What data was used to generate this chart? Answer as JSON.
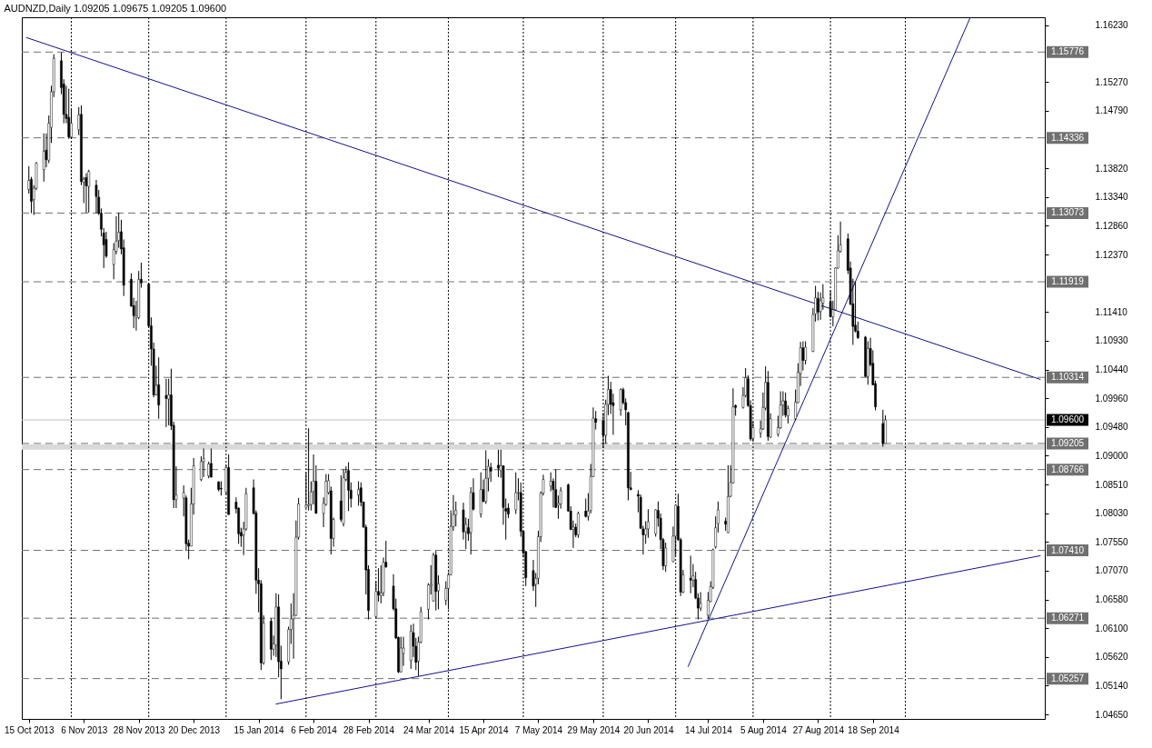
{
  "chart_data": {
    "type": "candlestick",
    "title": "AUDNZD,Daily 1.09205 1.09675 1.09205 1.09600",
    "color": "#000000",
    "x": [
      "2013-10-15",
      "2013-10-16",
      "2013-10-17",
      "2013-10-18",
      "2013-10-21",
      "2013-10-22",
      "2013-10-23",
      "2013-10-24",
      "2013-10-25",
      "2013-10-28",
      "2013-10-29",
      "2013-10-30",
      "2013-10-31",
      "2013-11-01",
      "2013-11-04",
      "2013-11-05",
      "2013-11-06",
      "2013-11-07",
      "2013-11-08",
      "2013-11-11",
      "2013-11-12",
      "2013-11-13",
      "2013-11-14",
      "2013-11-15",
      "2013-11-18",
      "2013-11-19",
      "2013-11-20",
      "2013-11-21",
      "2013-11-22",
      "2013-11-25",
      "2013-11-26",
      "2013-11-27",
      "2013-11-28",
      "2013-11-29",
      "2013-12-02",
      "2013-12-03",
      "2013-12-04",
      "2013-12-05",
      "2013-12-06",
      "2013-12-09",
      "2013-12-10",
      "2013-12-11",
      "2013-12-12",
      "2013-12-13",
      "2013-12-16",
      "2013-12-17",
      "2013-12-18",
      "2013-12-19",
      "2013-12-20",
      "2013-12-23",
      "2013-12-24",
      "2013-12-26",
      "2013-12-27",
      "2013-12-30",
      "2013-12-31",
      "2014-01-02",
      "2014-01-03",
      "2014-01-06",
      "2014-01-07",
      "2014-01-08",
      "2014-01-09",
      "2014-01-10",
      "2014-01-13",
      "2014-01-14",
      "2014-01-15",
      "2014-01-16",
      "2014-01-17",
      "2014-01-20",
      "2014-01-21",
      "2014-01-22",
      "2014-01-23",
      "2014-01-24",
      "2014-01-27",
      "2014-01-28",
      "2014-01-29",
      "2014-01-30",
      "2014-01-31",
      "2014-02-03",
      "2014-02-04",
      "2014-02-05",
      "2014-02-06",
      "2014-02-07",
      "2014-02-10",
      "2014-02-11",
      "2014-02-12",
      "2014-02-13",
      "2014-02-14",
      "2014-02-17",
      "2014-02-18",
      "2014-02-19",
      "2014-02-20",
      "2014-02-21",
      "2014-02-24",
      "2014-02-25",
      "2014-02-26",
      "2014-02-27",
      "2014-02-28",
      "2014-03-03",
      "2014-03-04",
      "2014-03-05",
      "2014-03-06",
      "2014-03-07",
      "2014-03-10",
      "2014-03-11",
      "2014-03-12",
      "2014-03-13",
      "2014-03-14",
      "2014-03-17",
      "2014-03-18",
      "2014-03-19",
      "2014-03-20",
      "2014-03-21",
      "2014-03-24",
      "2014-03-25",
      "2014-03-26",
      "2014-03-27",
      "2014-03-28",
      "2014-03-31",
      "2014-04-01",
      "2014-04-02",
      "2014-04-03",
      "2014-04-04",
      "2014-04-07",
      "2014-04-08",
      "2014-04-09",
      "2014-04-10",
      "2014-04-11",
      "2014-04-14",
      "2014-04-15",
      "2014-04-16",
      "2014-04-17",
      "2014-04-18",
      "2014-04-21",
      "2014-04-22",
      "2014-04-23",
      "2014-04-24",
      "2014-04-25",
      "2014-04-28",
      "2014-04-29",
      "2014-04-30",
      "2014-05-01",
      "2014-05-02",
      "2014-05-05",
      "2014-05-06",
      "2014-05-07",
      "2014-05-08",
      "2014-05-09",
      "2014-05-12",
      "2014-05-13",
      "2014-05-14",
      "2014-05-15",
      "2014-05-16",
      "2014-05-19",
      "2014-05-20",
      "2014-05-21",
      "2014-05-22",
      "2014-05-23",
      "2014-05-26",
      "2014-05-27",
      "2014-05-28",
      "2014-05-29",
      "2014-05-30",
      "2014-06-02",
      "2014-06-03",
      "2014-06-04",
      "2014-06-05",
      "2014-06-06",
      "2014-06-09",
      "2014-06-10",
      "2014-06-11",
      "2014-06-12",
      "2014-06-13",
      "2014-06-16",
      "2014-06-17",
      "2014-06-18",
      "2014-06-19",
      "2014-06-20",
      "2014-06-23",
      "2014-06-24",
      "2014-06-25",
      "2014-06-26",
      "2014-06-27",
      "2014-06-30",
      "2014-07-01",
      "2014-07-02",
      "2014-07-03",
      "2014-07-04",
      "2014-07-07",
      "2014-07-08",
      "2014-07-09",
      "2014-07-10",
      "2014-07-11",
      "2014-07-14",
      "2014-07-15",
      "2014-07-16",
      "2014-07-17",
      "2014-07-18",
      "2014-07-21",
      "2014-07-22",
      "2014-07-23",
      "2014-07-24",
      "2014-07-25",
      "2014-07-28",
      "2014-07-29",
      "2014-07-30",
      "2014-07-31",
      "2014-08-01",
      "2014-08-04",
      "2014-08-05",
      "2014-08-06",
      "2014-08-07",
      "2014-08-08",
      "2014-08-11",
      "2014-08-12",
      "2014-08-13",
      "2014-08-14",
      "2014-08-15",
      "2014-08-18",
      "2014-08-19",
      "2014-08-20",
      "2014-08-21",
      "2014-08-22",
      "2014-08-25",
      "2014-08-26",
      "2014-08-27",
      "2014-08-28",
      "2014-08-29",
      "2014-09-01",
      "2014-09-02",
      "2014-09-03",
      "2014-09-04",
      "2014-09-05",
      "2014-09-08",
      "2014-09-09",
      "2014-09-10",
      "2014-09-11",
      "2014-09-12",
      "2014-09-15",
      "2014-09-16",
      "2014-09-17",
      "2014-09-18",
      "2014-09-19",
      "2014-09-22",
      "2014-09-23"
    ],
    "ohlc": [
      [
        1.1347,
        1.1386,
        1.134,
        1.1362
      ],
      [
        1.1364,
        1.1368,
        1.1307,
        1.1327
      ],
      [
        1.133,
        1.1354,
        1.1304,
        1.1349
      ],
      [
        1.1349,
        1.1393,
        1.1346,
        1.1391
      ],
      [
        1.138,
        1.1441,
        1.136,
        1.1411
      ],
      [
        1.1413,
        1.1441,
        1.1384,
        1.1397
      ],
      [
        1.1396,
        1.1471,
        1.1391,
        1.1458
      ],
      [
        1.1451,
        1.1521,
        1.1425,
        1.1511
      ],
      [
        1.1511,
        1.1574,
        1.1502,
        1.1567
      ],
      [
        1.1563,
        1.1577,
        1.1507,
        1.1518
      ],
      [
        1.1524,
        1.1532,
        1.1458,
        1.1473
      ],
      [
        1.1473,
        1.1521,
        1.1458,
        1.1466
      ],
      [
        1.1468,
        1.1516,
        1.1432,
        1.1435
      ],
      [
        1.1435,
        1.1482,
        1.1432,
        1.1458
      ],
      [
        1.1447,
        1.1485,
        1.1438,
        1.1472
      ],
      [
        1.1473,
        1.1488,
        1.1354,
        1.136
      ],
      [
        1.1359,
        1.1368,
        1.1324,
        1.1364
      ],
      [
        1.1367,
        1.1374,
        1.1308,
        1.1353
      ],
      [
        1.1352,
        1.138,
        1.1308,
        1.1377
      ],
      [
        1.1354,
        1.1363,
        1.1307,
        1.1335
      ],
      [
        1.1334,
        1.1346,
        1.1304,
        1.1307
      ],
      [
        1.1307,
        1.1315,
        1.1268,
        1.128
      ],
      [
        1.1274,
        1.1282,
        1.1215,
        1.1254
      ],
      [
        1.1263,
        1.1276,
        1.1232,
        1.1235
      ],
      [
        1.1221,
        1.1257,
        1.1196,
        1.1246
      ],
      [
        1.1243,
        1.1302,
        1.1238,
        1.126
      ],
      [
        1.1261,
        1.1308,
        1.1249,
        1.1275
      ],
      [
        1.1276,
        1.1296,
        1.1238,
        1.1247
      ],
      [
        1.1249,
        1.1263,
        1.1168,
        1.1186
      ],
      [
        1.1196,
        1.1206,
        1.115,
        1.1151
      ],
      [
        1.1152,
        1.1165,
        1.1114,
        1.1135
      ],
      [
        1.1132,
        1.116,
        1.111,
        1.1135
      ],
      [
        1.1132,
        1.121,
        1.1129,
        1.1196
      ],
      [
        1.1196,
        1.1224,
        1.1182,
        1.119
      ],
      [
        1.1188,
        1.119,
        1.1115,
        1.1118
      ],
      [
        1.1118,
        1.1132,
        1.1051,
        1.1079
      ],
      [
        1.1079,
        1.109,
        1.0998,
        1.1002
      ],
      [
        1.1002,
        1.1051,
        1.1001,
        1.1018
      ],
      [
        1.1019,
        1.1065,
        1.0962,
        1.0985
      ],
      [
        1.1001,
        1.1029,
        1.0948,
        1.0996
      ],
      [
        1.0995,
        1.1029,
        1.0951,
        1.1002
      ],
      [
        1.1002,
        1.1046,
        1.0943,
        1.095
      ],
      [
        1.0951,
        1.0957,
        1.0812,
        1.0826
      ],
      [
        1.0826,
        1.0882,
        1.0812,
        1.0834
      ],
      [
        1.0829,
        1.085,
        1.0798,
        1.0838
      ],
      [
        1.0829,
        1.0833,
        1.074,
        1.0752
      ],
      [
        1.0753,
        1.0759,
        1.0726,
        1.0748
      ],
      [
        1.0748,
        1.0846,
        1.0748,
        1.0819
      ],
      [
        1.0819,
        1.0896,
        1.0801,
        1.0883
      ],
      [
        1.086,
        1.0899,
        1.0857,
        1.089
      ],
      [
        1.089,
        1.0912,
        1.0864,
        1.0895
      ],
      [
        1.0866,
        1.089,
        1.0862,
        1.0886
      ],
      [
        1.0887,
        1.0912,
        1.0863,
        1.0864
      ],
      [
        1.0856,
        1.0857,
        1.084,
        1.0843
      ],
      [
        1.0845,
        1.0857,
        1.0833,
        1.0844
      ],
      [
        1.0839,
        1.0884,
        1.0835,
        1.088
      ],
      [
        1.088,
        1.0902,
        1.0801,
        1.0801
      ],
      [
        1.0822,
        1.083,
        1.0803,
        1.0811
      ],
      [
        1.0812,
        1.0813,
        1.0752,
        1.0769
      ],
      [
        1.0771,
        1.0779,
        1.0747,
        1.0765
      ],
      [
        1.0767,
        1.0789,
        1.0733,
        1.0777
      ],
      [
        1.0777,
        1.0846,
        1.0774,
        1.0836
      ],
      [
        1.0846,
        1.086,
        1.0801,
        1.0803
      ],
      [
        1.0804,
        1.0808,
        1.0668,
        1.0691
      ],
      [
        1.0691,
        1.0711,
        1.0637,
        1.0685
      ],
      [
        1.0685,
        1.0691,
        1.054,
        1.0552
      ],
      [
        1.0552,
        1.0632,
        1.0549,
        1.0619
      ],
      [
        1.0622,
        1.0627,
        1.0557,
        1.0575
      ],
      [
        1.0575,
        1.0598,
        1.0564,
        1.0584
      ],
      [
        1.0582,
        1.0669,
        1.0562,
        1.0646
      ],
      [
        1.0646,
        1.0667,
        1.0528,
        1.0554
      ],
      [
        1.0555,
        1.0581,
        1.0491,
        1.0542
      ],
      [
        1.0554,
        1.0613,
        1.0549,
        1.0608
      ],
      [
        1.0608,
        1.0652,
        1.0584,
        1.0626
      ],
      [
        1.0626,
        1.0669,
        1.0559,
        1.0632
      ],
      [
        1.0632,
        1.0791,
        1.0631,
        1.0763
      ],
      [
        1.0763,
        1.0829,
        1.0759,
        1.0819
      ],
      [
        1.0813,
        1.0872,
        1.0813,
        1.0817
      ],
      [
        1.0816,
        1.0946,
        1.0808,
        1.0818
      ],
      [
        1.0818,
        1.0857,
        1.0808,
        1.0839
      ],
      [
        1.084,
        1.0902,
        1.0818,
        1.0857
      ],
      [
        1.0857,
        1.0884,
        1.0803,
        1.0803
      ],
      [
        1.0803,
        1.083,
        1.078,
        1.082
      ],
      [
        1.0818,
        1.0869,
        1.0816,
        1.0857
      ],
      [
        1.0838,
        1.0869,
        1.0835,
        1.0858
      ],
      [
        1.0841,
        1.0848,
        1.0734,
        1.0761
      ],
      [
        1.0761,
        1.0796,
        1.0747,
        1.0793
      ],
      [
        1.0824,
        1.0867,
        1.0789,
        1.0793
      ],
      [
        1.0786,
        1.0877,
        1.0781,
        1.0863
      ],
      [
        1.086,
        1.0882,
        1.0857,
        1.0872
      ],
      [
        1.0875,
        1.0889,
        1.0807,
        1.0842
      ],
      [
        1.0842,
        1.0855,
        1.0813,
        1.0828
      ],
      [
        1.0834,
        1.0857,
        1.0816,
        1.0843
      ],
      [
        1.0846,
        1.0855,
        1.0815,
        1.0822
      ],
      [
        1.0822,
        1.0823,
        1.0779,
        1.078
      ],
      [
        1.078,
        1.0784,
        1.0667,
        1.0708
      ],
      [
        1.0709,
        1.0716,
        1.0625,
        1.064
      ],
      [
        1.063,
        1.0689,
        1.0628,
        1.0672
      ],
      [
        1.0672,
        1.0711,
        1.0655,
        1.0666
      ],
      [
        1.0665,
        1.0716,
        1.0652,
        1.0669
      ],
      [
        1.067,
        1.0729,
        1.0664,
        1.0721
      ],
      [
        1.0721,
        1.0757,
        1.0712,
        1.0713
      ],
      [
        1.0681,
        1.0701,
        1.064,
        1.0643
      ],
      [
        1.0643,
        1.066,
        1.0592,
        1.0594
      ],
      [
        1.0595,
        1.0596,
        1.0535,
        1.0537
      ],
      [
        1.0537,
        1.0596,
        1.0536,
        1.0577
      ],
      [
        1.0568,
        1.0596,
        1.0547,
        1.0577
      ],
      [
        1.0556,
        1.0616,
        1.0542,
        1.0605
      ],
      [
        1.0603,
        1.0618,
        1.0562,
        1.058
      ],
      [
        1.058,
        1.0594,
        1.054,
        1.0553
      ],
      [
        1.0555,
        1.0596,
        1.053,
        1.0587
      ],
      [
        1.0587,
        1.0646,
        1.0585,
        1.0638
      ],
      [
        1.0642,
        1.0686,
        1.0625,
        1.0683
      ],
      [
        1.0682,
        1.0716,
        1.0667,
        1.0684
      ],
      [
        1.0656,
        1.0737,
        1.0655,
        1.0733
      ],
      [
        1.0733,
        1.074,
        1.064,
        1.0672
      ],
      [
        1.0673,
        1.0699,
        1.0642,
        1.0685
      ],
      [
        1.0657,
        1.0689,
        1.0649,
        1.0677
      ],
      [
        1.0677,
        1.0704,
        1.0642,
        1.07
      ],
      [
        1.07,
        1.0808,
        1.0699,
        1.0781
      ],
      [
        1.0781,
        1.0834,
        1.0774,
        1.0801
      ],
      [
        1.0801,
        1.0823,
        1.0781,
        1.0808
      ],
      [
        1.0809,
        1.0821,
        1.0759,
        1.0772
      ],
      [
        1.0772,
        1.0796,
        1.0743,
        1.0785
      ],
      [
        1.0779,
        1.0794,
        1.0757,
        1.0769
      ],
      [
        1.0771,
        1.0847,
        1.0734,
        1.0838
      ],
      [
        1.0838,
        1.0862,
        1.0808,
        1.081
      ],
      [
        1.0802,
        1.0872,
        1.0796,
        1.0843
      ],
      [
        1.0843,
        1.086,
        1.0822,
        1.0823
      ],
      [
        1.0823,
        1.0909,
        1.0819,
        1.0862
      ],
      [
        1.0862,
        1.0894,
        1.084,
        1.0882
      ],
      [
        1.088,
        1.0888,
        1.0856,
        1.0874
      ],
      [
        1.0884,
        1.091,
        1.0864,
        1.0879
      ],
      [
        1.0875,
        1.091,
        1.0863,
        1.0883
      ],
      [
        1.0883,
        1.0884,
        1.0784,
        1.0813
      ],
      [
        1.0811,
        1.0828,
        1.0759,
        1.0807
      ],
      [
        1.0812,
        1.082,
        1.0795,
        1.0802
      ],
      [
        1.0809,
        1.0872,
        1.0802,
        1.0838
      ],
      [
        1.0837,
        1.0862,
        1.0825,
        1.0838
      ],
      [
        1.0838,
        1.0855,
        1.0764,
        1.0773
      ],
      [
        1.0773,
        1.0774,
        1.0729,
        1.0737
      ],
      [
        1.0739,
        1.074,
        1.0681,
        1.0695
      ],
      [
        1.0707,
        1.0725,
        1.0673,
        1.0681
      ],
      [
        1.0684,
        1.0703,
        1.0646,
        1.0694
      ],
      [
        1.0694,
        1.0774,
        1.0684,
        1.0764
      ],
      [
        1.0764,
        1.084,
        1.0755,
        1.0837
      ],
      [
        1.0837,
        1.0868,
        1.0833,
        1.086
      ],
      [
        1.0849,
        1.0872,
        1.084,
        1.0857
      ],
      [
        1.0857,
        1.0862,
        1.0813,
        1.0843
      ],
      [
        1.0843,
        1.0877,
        1.0812,
        1.0813
      ],
      [
        1.0817,
        1.0833,
        1.0794,
        1.082
      ],
      [
        1.0819,
        1.0847,
        1.0811,
        1.0841
      ],
      [
        1.0851,
        1.0853,
        1.0806,
        1.0807
      ],
      [
        1.0807,
        1.0815,
        1.0775,
        1.0776
      ],
      [
        1.0776,
        1.0791,
        1.0745,
        1.078
      ],
      [
        1.078,
        1.0786,
        1.0763,
        1.0767
      ],
      [
        1.0767,
        1.0806,
        1.0762,
        1.0803
      ],
      [
        1.0807,
        1.0828,
        1.0796,
        1.0798
      ],
      [
        1.0798,
        1.0837,
        1.0791,
        1.0807
      ],
      [
        1.0808,
        1.0886,
        1.0803,
        1.0865
      ],
      [
        1.0865,
        1.0981,
        1.0864,
        1.0963
      ],
      [
        1.0962,
        1.0975,
        1.0944,
        1.0956
      ],
      [
        1.0959,
        1.0972,
        1.0913,
        1.0934
      ],
      [
        1.0934,
        1.0994,
        1.092,
        1.0986
      ],
      [
        1.0986,
        1.1034,
        1.0968,
        1.1011
      ],
      [
        1.1011,
        1.1024,
        1.097,
        1.0986
      ],
      [
        1.0989,
        1.1004,
        1.0935,
        1.0984
      ],
      [
        1.0977,
        1.1013,
        1.0967,
        1.1011
      ],
      [
        1.1011,
        1.1014,
        1.0986,
        1.0989
      ],
      [
        1.0989,
        1.0996,
        1.0951,
        1.0977
      ],
      [
        1.0972,
        1.0974,
        1.0825,
        1.0846
      ],
      [
        1.0846,
        1.0873,
        1.0842,
        1.0843
      ],
      [
        1.0835,
        1.0842,
        1.0805,
        1.0832
      ],
      [
        1.083,
        1.0835,
        1.0777,
        1.0778
      ],
      [
        1.0777,
        1.0782,
        1.0734,
        1.0767
      ],
      [
        1.0767,
        1.079,
        1.0752,
        1.0777
      ],
      [
        1.0777,
        1.081,
        1.0762,
        1.0789
      ],
      [
        1.0769,
        1.081,
        1.0764,
        1.0809
      ],
      [
        1.0808,
        1.0823,
        1.0781,
        1.0795
      ],
      [
        1.0795,
        1.0803,
        1.0743,
        1.0759
      ],
      [
        1.0759,
        1.0762,
        1.0708,
        1.0715
      ],
      [
        1.0715,
        1.0754,
        1.0705,
        1.0745
      ],
      [
        1.0722,
        1.0781,
        1.0721,
        1.0765
      ],
      [
        1.0765,
        1.0818,
        1.0732,
        1.0817
      ],
      [
        1.0815,
        1.0836,
        1.0757,
        1.0759
      ],
      [
        1.0759,
        1.0762,
        1.0664,
        1.0671
      ],
      [
        1.0671,
        1.0708,
        1.0669,
        1.07
      ],
      [
        1.0694,
        1.0732,
        1.0669,
        1.0691
      ],
      [
        1.0691,
        1.0718,
        1.0679,
        1.0698
      ],
      [
        1.0692,
        1.0705,
        1.0659,
        1.0661
      ],
      [
        1.0661,
        1.0669,
        1.0625,
        1.0644
      ],
      [
        1.0644,
        1.0671,
        1.0639,
        1.0652
      ],
      [
        1.0632,
        1.0671,
        1.0627,
        1.0657
      ],
      [
        1.0655,
        1.0689,
        1.0654,
        1.068
      ],
      [
        1.0679,
        1.0744,
        1.0676,
        1.0742
      ],
      [
        1.0747,
        1.0798,
        1.0744,
        1.0779
      ],
      [
        1.0786,
        1.0823,
        1.0771,
        1.0809
      ],
      [
        1.079,
        1.0796,
        1.0774,
        1.0785
      ],
      [
        1.0771,
        1.0884,
        1.077,
        1.0831
      ],
      [
        1.0832,
        1.0884,
        1.083,
        1.0855
      ],
      [
        1.0854,
        1.1013,
        1.0853,
        1.0982
      ],
      [
        1.0984,
        1.0986,
        1.0967,
        1.0981
      ],
      [
        1.0981,
        1.1015,
        1.0979,
        1.1001
      ],
      [
        1.1001,
        1.1047,
        1.0998,
        1.1031
      ],
      [
        1.1029,
        1.1035,
        1.0982,
        1.0984
      ],
      [
        1.0984,
        1.0993,
        1.0925,
        1.0928
      ],
      [
        1.0929,
        1.0957,
        1.0923,
        1.0947
      ],
      [
        1.0938,
        1.0959,
        1.093,
        1.0945
      ],
      [
        1.0945,
        1.1006,
        1.0943,
        1.0981
      ],
      [
        1.098,
        1.105,
        1.0976,
        1.1023
      ],
      [
        1.1023,
        1.1042,
        1.0925,
        1.0932
      ],
      [
        1.0931,
        1.0971,
        1.093,
        1.0962
      ],
      [
        1.0936,
        1.0967,
        1.0932,
        1.0947
      ],
      [
        1.0947,
        1.1008,
        1.0945,
        1.0985
      ],
      [
        1.0985,
        1.1008,
        1.0967,
        1.0992
      ],
      [
        1.0992,
        1.1006,
        1.0964,
        1.0968
      ],
      [
        1.0967,
        1.0984,
        1.0954,
        1.0979
      ],
      [
        1.0962,
        1.1011,
        1.0959,
        1.099
      ],
      [
        1.0989,
        1.1055,
        1.0988,
        1.104
      ],
      [
        1.1038,
        1.1091,
        1.1017,
        1.1081
      ],
      [
        1.1081,
        1.1092,
        1.1043,
        1.106
      ],
      [
        1.106,
        1.1092,
        1.1053,
        1.1082
      ],
      [
        1.1075,
        1.1148,
        1.1074,
        1.1137
      ],
      [
        1.1138,
        1.1185,
        1.1125,
        1.1165
      ],
      [
        1.1164,
        1.1175,
        1.1127,
        1.1141
      ],
      [
        1.1142,
        1.1174,
        1.1128,
        1.116
      ],
      [
        1.1156,
        1.1188,
        1.1145,
        1.1165
      ],
      [
        1.1159,
        1.1177,
        1.1132,
        1.1133
      ],
      [
        1.1133,
        1.116,
        1.1117,
        1.1145
      ],
      [
        1.1145,
        1.1216,
        1.1144,
        1.1215
      ],
      [
        1.1215,
        1.127,
        1.1214,
        1.1244
      ],
      [
        1.1243,
        1.1293,
        1.1241,
        1.1254
      ],
      [
        1.1264,
        1.1273,
        1.1205,
        1.1211
      ],
      [
        1.1215,
        1.1226,
        1.1153,
        1.1154
      ],
      [
        1.1155,
        1.1197,
        1.1086,
        1.1117
      ],
      [
        1.1119,
        1.1192,
        1.1107,
        1.1109
      ],
      [
        1.1109,
        1.1125,
        1.1096,
        1.1098
      ],
      [
        1.1099,
        1.1101,
        1.1032,
        1.1033
      ],
      [
        1.1033,
        1.1092,
        1.1019,
        1.108
      ],
      [
        1.108,
        1.1098,
        1.105,
        1.1053
      ],
      [
        1.1055,
        1.1077,
        1.1018,
        1.1019
      ],
      [
        1.1021,
        1.1026,
        1.0976,
        1.0982
      ],
      [
        1.0954,
        1.0977,
        1.0915,
        1.092
      ],
      [
        1.09205,
        1.09675,
        1.09205,
        1.096
      ]
    ],
    "series": [
      {
        "type": "line",
        "color": "#101094",
        "x": [
          "2013-10-14",
          "2014-11-24"
        ],
        "values": [
          1.1602,
          1.1028
        ]
      },
      {
        "type": "line",
        "color": "#101094",
        "x": [
          "2014-01-22",
          "2014-11-24"
        ],
        "values": [
          1.0483,
          1.0732
        ]
      },
      {
        "type": "line",
        "color": "#101094",
        "x": [
          "2014-07-06",
          "2014-10-27"
        ],
        "values": [
          1.0546,
          1.1636
        ]
      }
    ],
    "xlim": [
      "2013-10-14",
      "2014-11-24"
    ],
    "xticks": [
      {
        "value": "2013-10-15",
        "label": "15 Oct 2013"
      },
      {
        "value": "2013-11-06",
        "label": "6 Nov 2013"
      },
      {
        "value": "2013-11-28",
        "label": "28 Nov 2013"
      },
      {
        "value": "2013-12-20",
        "label": "20 Dec 2013"
      },
      {
        "value": "2014-01-15",
        "label": "15 Jan 2014"
      },
      {
        "value": "2014-02-06",
        "label": "6 Feb 2014"
      },
      {
        "value": "2014-02-28",
        "label": "28 Feb 2014"
      },
      {
        "value": "2014-03-24",
        "label": "24 Mar 2014"
      },
      {
        "value": "2014-04-15",
        "label": "15 Apr 2014"
      },
      {
        "value": "2014-05-07",
        "label": "7 May 2014"
      },
      {
        "value": "2014-05-29",
        "label": "29 May 2014"
      },
      {
        "value": "2014-06-20",
        "label": "20 Jun 2014"
      },
      {
        "value": "2014-07-14",
        "label": "14 Jul 2014"
      },
      {
        "value": "2014-08-05",
        "label": "5 Aug 2014"
      },
      {
        "value": "2014-08-27",
        "label": "27 Aug 2014"
      },
      {
        "value": "2014-09-18",
        "label": "18 Sep 2014"
      }
    ],
    "ylim": [
      1.0458,
      1.1636
    ],
    "yticks": [
      {
        "value": 1.1623,
        "label": "1.16230"
      },
      {
        "value": 1.1527,
        "label": "1.15270"
      },
      {
        "value": 1.1479,
        "label": "1.14790"
      },
      {
        "value": 1.1382,
        "label": "1.13820"
      },
      {
        "value": 1.1334,
        "label": "1.13340"
      },
      {
        "value": 1.1286,
        "label": "1.12860"
      },
      {
        "value": 1.1237,
        "label": "1.12370"
      },
      {
        "value": 1.1141,
        "label": "1.11410"
      },
      {
        "value": 1.1093,
        "label": "1.10930"
      },
      {
        "value": 1.1044,
        "label": "1.10440"
      },
      {
        "value": 1.0996,
        "label": "1.09960"
      },
      {
        "value": 1.0948,
        "label": "1.09480"
      },
      {
        "value": 1.09,
        "label": "1.09000"
      },
      {
        "value": 1.0851,
        "label": "1.08510"
      },
      {
        "value": 1.0803,
        "label": "1.08030"
      },
      {
        "value": 1.0755,
        "label": "1.07550"
      },
      {
        "value": 1.0707,
        "label": "1.07070"
      },
      {
        "value": 1.0658,
        "label": "1.06580"
      },
      {
        "value": 1.061,
        "label": "1.06100"
      },
      {
        "value": 1.0562,
        "label": "1.05620"
      },
      {
        "value": 1.0514,
        "label": "1.05140"
      },
      {
        "value": 1.0465,
        "label": "1.04650"
      }
    ],
    "bands": [
      {
        "axis": "y",
        "from": 1.091,
        "to": 1.0919,
        "color": "#d9d9d9"
      }
    ],
    "ref_lines": [
      {
        "axis": "y",
        "value": 1.15776,
        "label": "1.15776",
        "line_style": "dashed",
        "color": "#707070"
      },
      {
        "axis": "y",
        "value": 1.14336,
        "label": "1.14336",
        "line_style": "dashed",
        "color": "#707070"
      },
      {
        "axis": "y",
        "value": 1.13073,
        "label": "1.13073",
        "line_style": "dashed",
        "color": "#707070"
      },
      {
        "axis": "y",
        "value": 1.11919,
        "label": "1.11919",
        "line_style": "dashed",
        "color": "#707070"
      },
      {
        "axis": "y",
        "value": 1.10314,
        "label": "1.10314",
        "line_style": "dashed",
        "color": "#707070"
      },
      {
        "axis": "y",
        "value": 1.096,
        "label": "1.09600",
        "line_style": "solid",
        "color": "#c0c0c0"
      },
      {
        "axis": "y",
        "value": 1.09205,
        "label": "1.09205",
        "line_style": "dashed",
        "color": "#707070"
      },
      {
        "axis": "y",
        "value": 1.08766,
        "label": "1.08766",
        "line_style": "dashed",
        "color": "#707070"
      },
      {
        "axis": "y",
        "value": 1.0741,
        "label": "1.07410",
        "line_style": "dashed",
        "color": "#707070"
      },
      {
        "axis": "y",
        "value": 1.06271,
        "label": "1.06271",
        "line_style": "dashed",
        "color": "#707070"
      },
      {
        "axis": "y",
        "value": 1.05257,
        "label": "1.05257",
        "line_style": "dashed",
        "color": "#707070"
      },
      {
        "axis": "x",
        "value": "2013-11-01",
        "line_style": "dotted",
        "color": "#000000"
      },
      {
        "axis": "x",
        "value": "2013-12-02",
        "line_style": "dotted",
        "color": "#000000"
      },
      {
        "axis": "x",
        "value": "2014-01-02",
        "line_style": "dotted",
        "color": "#000000"
      },
      {
        "axis": "x",
        "value": "2014-02-03",
        "line_style": "dotted",
        "color": "#000000"
      },
      {
        "axis": "x",
        "value": "2014-03-03",
        "line_style": "dotted",
        "color": "#000000"
      },
      {
        "axis": "x",
        "value": "2014-04-01",
        "line_style": "dotted",
        "color": "#000000"
      },
      {
        "axis": "x",
        "value": "2014-05-01",
        "line_style": "dotted",
        "color": "#000000"
      },
      {
        "axis": "x",
        "value": "2014-06-02",
        "line_style": "dotted",
        "color": "#000000"
      },
      {
        "axis": "x",
        "value": "2014-07-01",
        "line_style": "dotted",
        "color": "#000000"
      },
      {
        "axis": "x",
        "value": "2014-08-01",
        "line_style": "dotted",
        "color": "#000000"
      },
      {
        "axis": "x",
        "value": "2014-09-01",
        "line_style": "dotted",
        "color": "#000000"
      },
      {
        "axis": "x",
        "value": "2014-10-01",
        "line_style": "dotted",
        "color": "#000000"
      }
    ]
  }
}
